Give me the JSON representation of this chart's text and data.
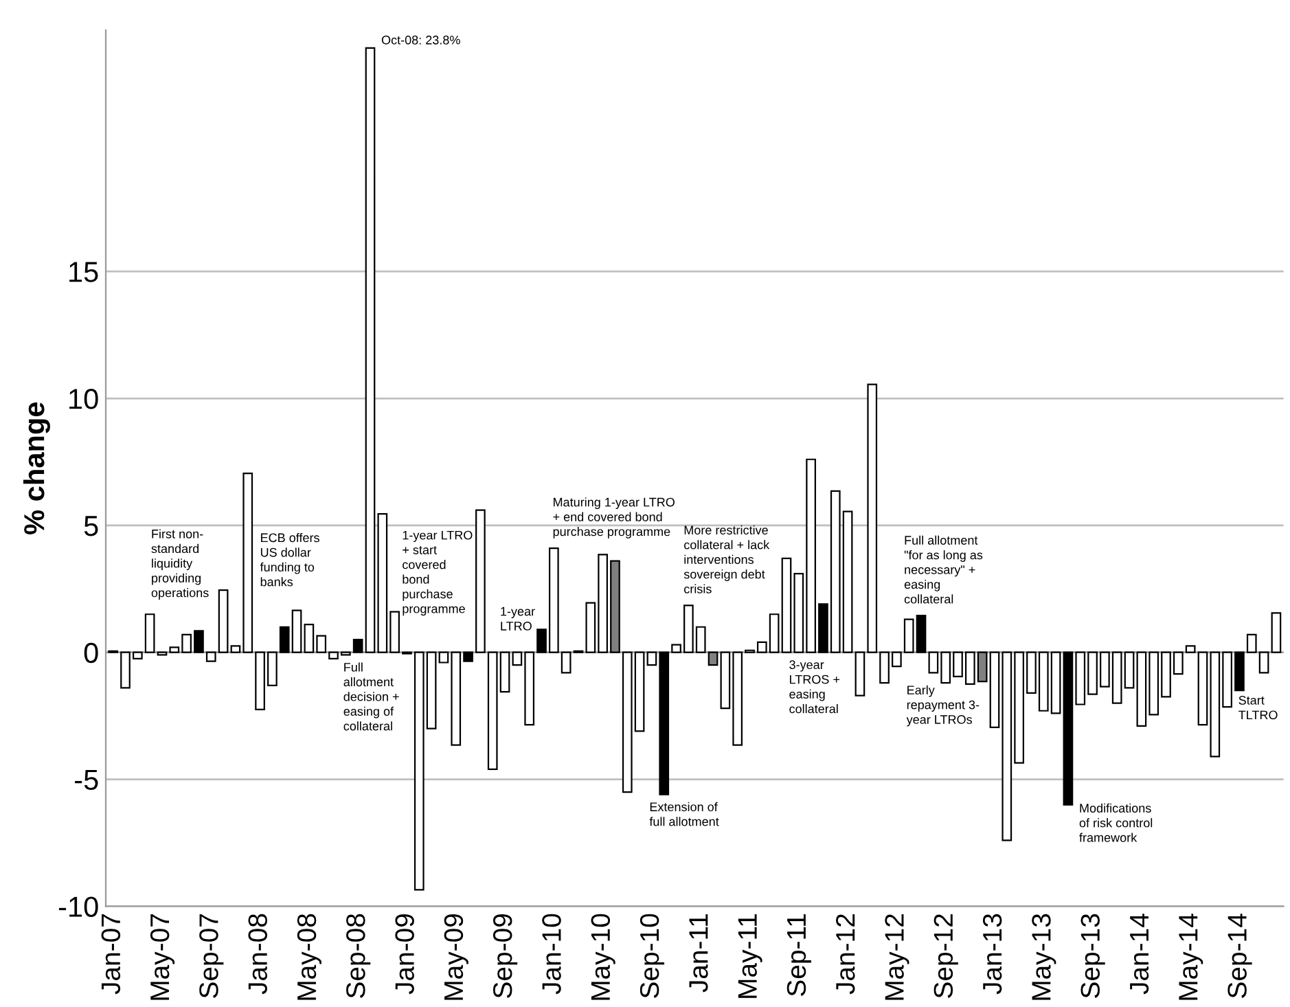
{
  "chart_data": {
    "type": "bar",
    "ylabel": "% change",
    "categories": [
      "Jan-07",
      null,
      null,
      null,
      "May-07",
      null,
      null,
      null,
      "Sep-07",
      null,
      null,
      null,
      "Jan-08",
      null,
      null,
      null,
      "May-08",
      null,
      null,
      null,
      "Sep-08",
      null,
      null,
      null,
      "Jan-09",
      null,
      null,
      null,
      "May-09",
      null,
      null,
      null,
      "Sep-09",
      null,
      null,
      null,
      "Jan-10",
      null,
      null,
      null,
      "May-10",
      null,
      null,
      null,
      "Sep-10",
      null,
      null,
      null,
      "Jan-11",
      null,
      null,
      null,
      "May-11",
      null,
      null,
      null,
      "Sep-11",
      null,
      null,
      null,
      "Jan-12",
      null,
      null,
      null,
      "May-12",
      null,
      null,
      null,
      "Sep-12",
      null,
      null,
      null,
      "Jan-13",
      null,
      null,
      null,
      "May-13",
      null,
      null,
      null,
      "Sep-13",
      null,
      null,
      null,
      "Jan-14",
      null,
      null,
      null,
      "May-14",
      null,
      null,
      null,
      "Sep-14",
      null,
      null,
      null
    ],
    "values": [
      0.05,
      -1.4,
      -0.25,
      1.5,
      -0.1,
      0.2,
      0.7,
      0.85,
      -0.35,
      2.45,
      0.25,
      7.05,
      -2.25,
      -1.3,
      1.0,
      1.65,
      1.1,
      0.65,
      -0.25,
      -0.1,
      0.5,
      23.8,
      5.45,
      1.6,
      -0.05,
      -9.35,
      -3.0,
      -0.4,
      -3.65,
      -0.35,
      5.6,
      -4.6,
      -1.55,
      -0.5,
      -2.85,
      0.9,
      4.1,
      -0.8,
      0.05,
      1.95,
      3.85,
      3.6,
      -5.5,
      -3.1,
      -0.5,
      -5.6,
      0.3,
      1.85,
      1.0,
      -0.5,
      -2.2,
      -3.65,
      0.08,
      0.4,
      1.5,
      3.7,
      3.1,
      7.6,
      1.9,
      6.35,
      5.55,
      -1.7,
      10.55,
      -1.2,
      -0.55,
      1.3,
      1.45,
      -0.8,
      -1.2,
      -0.95,
      -1.25,
      -1.15,
      -2.95,
      -7.4,
      -4.35,
      -1.6,
      -2.3,
      -2.4,
      -6.0,
      -2.05,
      -1.65,
      -1.35,
      -2.0,
      -1.4,
      -2.9,
      -2.45,
      -1.75,
      -0.85,
      0.25,
      -2.85,
      -4.1,
      -2.15,
      -1.5,
      0.7,
      -0.8,
      1.55
    ],
    "colors": [
      "#ffffff",
      "#ffffff",
      "#ffffff",
      "#ffffff",
      "#ffffff",
      "#ffffff",
      "#ffffff",
      "#000000",
      "#ffffff",
      "#ffffff",
      "#ffffff",
      "#ffffff",
      "#ffffff",
      "#ffffff",
      "#000000",
      "#ffffff",
      "#ffffff",
      "#ffffff",
      "#ffffff",
      "#ffffff",
      "#000000",
      "#ffffff",
      "#ffffff",
      "#ffffff",
      "#ffffff",
      "#ffffff",
      "#ffffff",
      "#ffffff",
      "#ffffff",
      "#000000",
      "#ffffff",
      "#ffffff",
      "#ffffff",
      "#ffffff",
      "#ffffff",
      "#000000",
      "#ffffff",
      "#ffffff",
      "#ffffff",
      "#ffffff",
      "#ffffff",
      "#808080",
      "#ffffff",
      "#ffffff",
      "#ffffff",
      "#000000",
      "#ffffff",
      "#ffffff",
      "#ffffff",
      "#808080",
      "#ffffff",
      "#ffffff",
      "#ffffff",
      "#ffffff",
      "#ffffff",
      "#ffffff",
      "#ffffff",
      "#ffffff",
      "#000000",
      "#ffffff",
      "#ffffff",
      "#ffffff",
      "#ffffff",
      "#ffffff",
      "#ffffff",
      "#ffffff",
      "#000000",
      "#ffffff",
      "#ffffff",
      "#ffffff",
      "#ffffff",
      "#808080",
      "#ffffff",
      "#ffffff",
      "#ffffff",
      "#ffffff",
      "#ffffff",
      "#ffffff",
      "#000000",
      "#ffffff",
      "#ffffff",
      "#ffffff",
      "#ffffff",
      "#ffffff",
      "#ffffff",
      "#ffffff",
      "#ffffff",
      "#ffffff",
      "#ffffff",
      "#ffffff",
      "#ffffff",
      "#ffffff",
      "#000000",
      "#ffffff",
      "#ffffff",
      "#ffffff"
    ],
    "ylim": [
      -10,
      24.5
    ],
    "yticks": [
      -10,
      -5,
      0,
      5,
      10,
      15
    ],
    "grid": "y",
    "legend": false,
    "annotations": [
      "First non-\nstandard\nliquidity\nproviding\noperations",
      "ECB offers\nUS dollar\nfunding to\nbanks",
      "Full\nallotment\ndecision +\neasing of\ncollateral",
      "Oct-08: 23.8%",
      "1-year LTRO\n+ start\ncovered\nbond\npurchase\nprogramme",
      "1-year\nLTRO",
      "Maturing 1-year LTRO\n+ end covered bond\npurchase programme",
      "More restrictive\ncollateral + lack\ninterventions\nsovereign debt\ncrisis",
      "Extension of\nfull allotment",
      "3-year\nLTROS +\neasing\ncollateral",
      "Full allotment\n\"for as long as\nnecessary\" +\neasing\ncollateral",
      "Early\nrepayment 3-\nyear LTROs",
      "Modifications\nof risk control\nframework",
      "Start\nTLTRO"
    ]
  }
}
